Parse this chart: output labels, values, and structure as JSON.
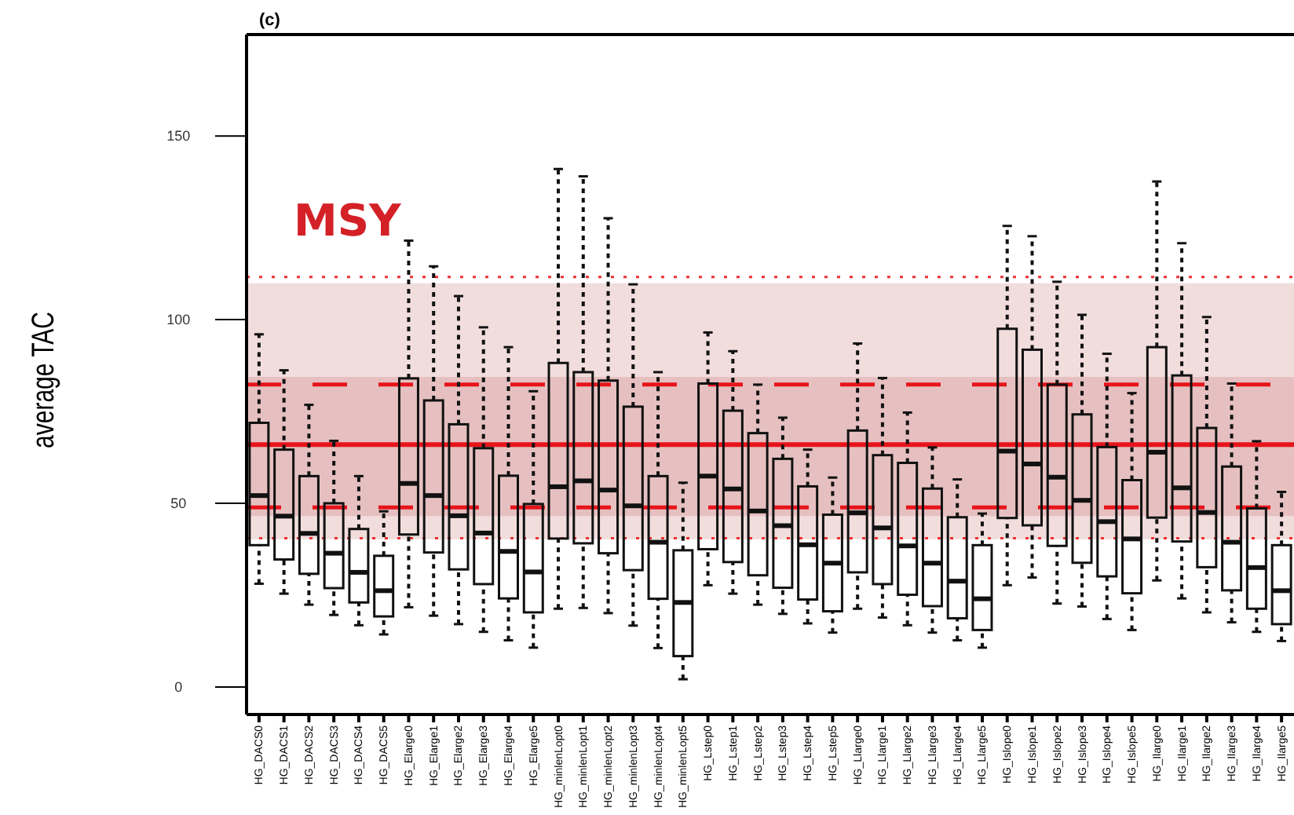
{
  "chart_data": {
    "type": "box",
    "title": "(c)",
    "ylabel": "average TAC",
    "annotations": [
      "MSY"
    ],
    "categories": [
      "HG_DACS0",
      "HG_DACS1",
      "HG_DACS2",
      "HG_DACS3",
      "HG_DACS4",
      "HG_DACS5",
      "HG_Elarge0",
      "HG_Elarge1",
      "HG_Elarge2",
      "HG_Elarge3",
      "HG_Elarge4",
      "HG_Elarge5",
      "HG_minlenLopt0",
      "HG_minlenLopt1",
      "HG_minlenLopt2",
      "HG_minlenLopt3",
      "HG_minlenLopt4",
      "HG_minlenLopt5",
      "HG_Lstep0",
      "HG_Lstep1",
      "HG_Lstep2",
      "HG_Lstep3",
      "HG_Lstep4",
      "HG_Lstep5",
      "HG_Llarge0",
      "HG_Llarge1",
      "HG_Llarge2",
      "HG_Llarge3",
      "HG_Llarge4",
      "HG_Llarge5",
      "HG_Islope0",
      "HG_Islope1",
      "HG_Islope2",
      "HG_Islope3",
      "HG_Islope4",
      "HG_Islope5",
      "HG_Ilarge0",
      "HG_Ilarge1",
      "HG_Ilarge2",
      "HG_Ilarge3",
      "HG_Ilarge4",
      "HG_Ilarge5"
    ],
    "boxes": [
      {
        "low": 28.1,
        "q1": 38.6,
        "median": 52.1,
        "q3": 71.9,
        "high": 96.0
      },
      {
        "low": 25.4,
        "q1": 34.7,
        "median": 46.5,
        "q3": 64.6,
        "high": 86.2
      },
      {
        "low": 22.4,
        "q1": 30.8,
        "median": 41.8,
        "q3": 57.4,
        "high": 76.8
      },
      {
        "low": 19.6,
        "q1": 26.9,
        "median": 36.4,
        "q3": 50.0,
        "high": 67.0
      },
      {
        "low": 16.8,
        "q1": 23.0,
        "median": 31.2,
        "q3": 43.0,
        "high": 57.4
      },
      {
        "low": 14.3,
        "q1": 19.2,
        "median": 26.2,
        "q3": 35.7,
        "high": 47.8
      },
      {
        "low": 21.7,
        "q1": 41.5,
        "median": 55.4,
        "q3": 84.0,
        "high": 121.5
      },
      {
        "low": 19.4,
        "q1": 36.6,
        "median": 52.1,
        "q3": 78.0,
        "high": 114.5
      },
      {
        "low": 17.1,
        "q1": 32.0,
        "median": 46.6,
        "q3": 71.5,
        "high": 106.4
      },
      {
        "low": 15.0,
        "q1": 28.0,
        "median": 41.9,
        "q3": 65.0,
        "high": 97.9
      },
      {
        "low": 12.7,
        "q1": 24.1,
        "median": 36.9,
        "q3": 57.5,
        "high": 92.5
      },
      {
        "low": 10.7,
        "q1": 20.3,
        "median": 31.3,
        "q3": 49.8,
        "high": 80.5
      },
      {
        "low": 21.3,
        "q1": 40.4,
        "median": 54.5,
        "q3": 88.2,
        "high": 141.0
      },
      {
        "low": 21.5,
        "q1": 39.1,
        "median": 56.1,
        "q3": 85.7,
        "high": 139.0
      },
      {
        "low": 20.1,
        "q1": 36.4,
        "median": 53.6,
        "q3": 83.4,
        "high": 127.6
      },
      {
        "low": 16.7,
        "q1": 31.8,
        "median": 49.3,
        "q3": 76.3,
        "high": 109.6
      },
      {
        "low": 10.6,
        "q1": 24.0,
        "median": 39.4,
        "q3": 57.4,
        "high": 85.7
      },
      {
        "low": 2.1,
        "q1": 8.4,
        "median": 23.0,
        "q3": 37.2,
        "high": 55.6
      },
      {
        "low": 27.7,
        "q1": 37.5,
        "median": 57.4,
        "q3": 82.6,
        "high": 96.5
      },
      {
        "low": 25.4,
        "q1": 34.0,
        "median": 53.9,
        "q3": 75.2,
        "high": 91.4
      },
      {
        "low": 22.4,
        "q1": 30.4,
        "median": 47.9,
        "q3": 69.1,
        "high": 82.3
      },
      {
        "low": 19.9,
        "q1": 27.0,
        "median": 43.9,
        "q3": 62.1,
        "high": 73.3
      },
      {
        "low": 17.3,
        "q1": 23.8,
        "median": 38.7,
        "q3": 54.6,
        "high": 64.6
      },
      {
        "low": 14.8,
        "q1": 20.6,
        "median": 33.7,
        "q3": 46.9,
        "high": 57.0
      },
      {
        "low": 21.3,
        "q1": 31.2,
        "median": 47.4,
        "q3": 69.8,
        "high": 93.5
      },
      {
        "low": 18.9,
        "q1": 28.0,
        "median": 43.3,
        "q3": 63.1,
        "high": 84.1
      },
      {
        "low": 16.8,
        "q1": 25.1,
        "median": 38.4,
        "q3": 61.0,
        "high": 74.7
      },
      {
        "low": 14.8,
        "q1": 22.0,
        "median": 33.7,
        "q3": 54.0,
        "high": 65.2
      },
      {
        "low": 12.7,
        "q1": 18.7,
        "median": 28.8,
        "q3": 46.2,
        "high": 56.5
      },
      {
        "low": 10.7,
        "q1": 15.5,
        "median": 24.0,
        "q3": 38.6,
        "high": 47.2
      },
      {
        "low": 27.7,
        "q1": 46.0,
        "median": 64.2,
        "q3": 97.5,
        "high": 125.5
      },
      {
        "low": 29.8,
        "q1": 44.0,
        "median": 60.7,
        "q3": 91.8,
        "high": 122.7
      },
      {
        "low": 22.7,
        "q1": 38.4,
        "median": 57.1,
        "q3": 82.3,
        "high": 110.3
      },
      {
        "low": 21.9,
        "q1": 33.8,
        "median": 50.8,
        "q3": 74.2,
        "high": 101.3
      },
      {
        "low": 18.5,
        "q1": 30.1,
        "median": 45.0,
        "q3": 65.3,
        "high": 90.7
      },
      {
        "low": 15.5,
        "q1": 25.5,
        "median": 40.3,
        "q3": 56.3,
        "high": 80.0
      },
      {
        "low": 29.0,
        "q1": 46.1,
        "median": 63.9,
        "q3": 92.5,
        "high": 137.6
      },
      {
        "low": 24.1,
        "q1": 39.6,
        "median": 54.2,
        "q3": 84.8,
        "high": 120.8
      },
      {
        "low": 20.3,
        "q1": 32.6,
        "median": 47.5,
        "q3": 70.5,
        "high": 100.7
      },
      {
        "low": 17.6,
        "q1": 26.3,
        "median": 39.4,
        "q3": 60.0,
        "high": 82.6
      },
      {
        "low": 15.0,
        "q1": 21.3,
        "median": 32.5,
        "q3": 48.6,
        "high": 66.9
      },
      {
        "low": 12.5,
        "q1": 17.1,
        "median": 26.2,
        "q3": 38.6,
        "high": 53.1
      }
    ],
    "ylim": [
      -7.5,
      177.6
    ],
    "yticks": [
      0,
      50,
      100,
      150
    ],
    "bands": [
      {
        "axis": "y",
        "from": 40.2,
        "to": 109.9,
        "color": "#f2dddd"
      },
      {
        "axis": "y",
        "from": 46.5,
        "to": 84.4,
        "color": "#e6c0c0"
      }
    ],
    "ref_lines": [
      {
        "axis": "y",
        "value": 66.0,
        "color": "#e8141b",
        "line_style": "solid"
      },
      {
        "axis": "y",
        "value": 82.3,
        "color": "#e8141b",
        "line_style": "dashed"
      },
      {
        "axis": "y",
        "value": 48.9,
        "color": "#e8141b",
        "line_style": "dashed"
      },
      {
        "axis": "y",
        "value": 111.6,
        "color": "#f03030",
        "line_style": "dotted"
      },
      {
        "axis": "y",
        "value": 40.5,
        "color": "#f03030",
        "line_style": "dotted"
      }
    ]
  }
}
